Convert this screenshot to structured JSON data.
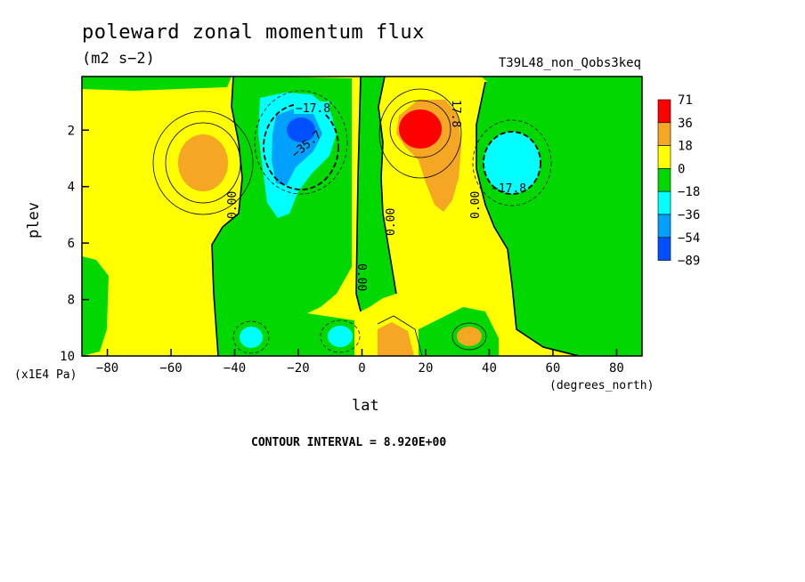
{
  "chart_data": {
    "type": "heatmap",
    "title": "poleward zonal momentum flux",
    "units": "(m2 s−2)",
    "run_label": "T39L48_non_Qobs3keq",
    "xlabel": "lat",
    "x_units": "(degrees_north)",
    "ylabel": "plev",
    "y_units": "(x1E4 Pa)",
    "x_ticks": [
      "−80",
      "−60",
      "−40",
      "−20",
      "0",
      "20",
      "40",
      "60",
      "80"
    ],
    "y_ticks": [
      "2",
      "4",
      "6",
      "8",
      "10"
    ],
    "xlim": [
      -88,
      88
    ],
    "ylim": [
      0.1,
      10
    ],
    "colorbar": {
      "labels": [
        "71",
        "36",
        "18",
        "0",
        "−18",
        "−36",
        "−54",
        "−89"
      ],
      "colors": [
        "#ff0000",
        "#f5a623",
        "#ffff00",
        "#00d800",
        "#00ffff",
        "#00a0ff",
        "#0050ff"
      ]
    },
    "features": [
      {
        "lat": -50,
        "plev": 3.0,
        "value": 25
      },
      {
        "lat": -20,
        "plev": 2.0,
        "value": -60
      },
      {
        "lat": -26,
        "plev": 3.4,
        "value": -42
      },
      {
        "lat": 20,
        "plev": 2.0,
        "value": 71
      },
      {
        "lat": 27,
        "plev": 4.0,
        "value": 22
      },
      {
        "lat": 46,
        "plev": 3.0,
        "value": -30
      },
      {
        "lat": -35,
        "plev": 9.3,
        "value": -24
      },
      {
        "lat": -7,
        "plev": 9.4,
        "value": -24
      },
      {
        "lat": 10,
        "plev": 9.4,
        "value": 22
      },
      {
        "lat": 34,
        "plev": 9.4,
        "value": 22
      }
    ],
    "contour_labels": [
      "−17.8",
      "−35.7",
      "0.00",
      "0.00",
      "0.00",
      "0.00",
      "17.8",
      "−17.8"
    ],
    "contour_interval": "CONTOUR INTERVAL = 8.920E+00"
  }
}
